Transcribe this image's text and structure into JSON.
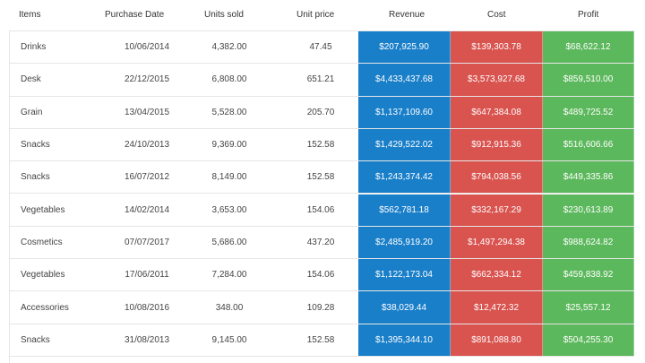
{
  "headers": {
    "items": "Items",
    "purchase_date": "Purchase Date",
    "units_sold": "Units sold",
    "unit_price": "Unit price",
    "revenue": "Revenue",
    "cost": "Cost",
    "profit": "Profit"
  },
  "colors": {
    "revenue": "#1a7fc9",
    "cost": "#d9534f",
    "profit": "#5cb85c"
  },
  "rows": [
    {
      "item": "Drinks",
      "date": "10/06/2014",
      "units": "4,382.00",
      "price": "47.45",
      "revenue": "$207,925.90",
      "cost": "$139,303.78",
      "profit": "$68,622.12"
    },
    {
      "item": "Desk",
      "date": "22/12/2015",
      "units": "6,808.00",
      "price": "651.21",
      "revenue": "$4,433,437.68",
      "cost": "$3,573,927.68",
      "profit": "$859,510.00"
    },
    {
      "item": "Grain",
      "date": "13/04/2015",
      "units": "5,528.00",
      "price": "205.70",
      "revenue": "$1,137,109.60",
      "cost": "$647,384.08",
      "profit": "$489,725.52"
    },
    {
      "item": "Snacks",
      "date": "24/10/2013",
      "units": "9,369.00",
      "price": "152.58",
      "revenue": "$1,429,522.02",
      "cost": "$912,915.36",
      "profit": "$516,606.66"
    },
    {
      "item": "Snacks",
      "date": "16/07/2012",
      "units": "8,149.00",
      "price": "152.58",
      "revenue": "$1,243,374.42",
      "cost": "$794,038.56",
      "profit": "$449,335.86"
    },
    {
      "item": "Vegetables",
      "date": "14/02/2014",
      "units": "3,653.00",
      "price": "154.06",
      "revenue": "$562,781.18",
      "cost": "$332,167.29",
      "profit": "$230,613.89"
    },
    {
      "item": "Cosmetics",
      "date": "07/07/2017",
      "units": "5,686.00",
      "price": "437.20",
      "revenue": "$2,485,919.20",
      "cost": "$1,497,294.38",
      "profit": "$988,624.82"
    },
    {
      "item": "Vegetables",
      "date": "17/06/2011",
      "units": "7,284.00",
      "price": "154.06",
      "revenue": "$1,122,173.04",
      "cost": "$662,334.12",
      "profit": "$459,838.92"
    },
    {
      "item": "Accessories",
      "date": "10/08/2016",
      "units": "348.00",
      "price": "109.28",
      "revenue": "$38,029.44",
      "cost": "$12,472.32",
      "profit": "$25,557.12"
    },
    {
      "item": "Snacks",
      "date": "31/08/2013",
      "units": "9,145.00",
      "price": "152.58",
      "revenue": "$1,395,344.10",
      "cost": "$891,088.80",
      "profit": "$504,255.30"
    }
  ]
}
